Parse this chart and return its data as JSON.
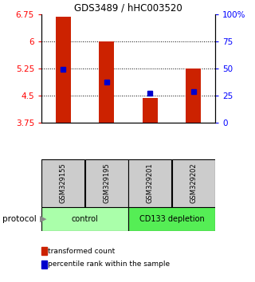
{
  "title": "GDS3489 / hHC003520",
  "samples": [
    "GSM329155",
    "GSM329195",
    "GSM329201",
    "GSM329202"
  ],
  "red_bar_bottom": 3.75,
  "red_bar_tops": [
    6.68,
    6.01,
    4.44,
    5.25
  ],
  "blue_marker_values": [
    5.22,
    4.87,
    4.57,
    4.6
  ],
  "ylim_left": [
    3.75,
    6.75
  ],
  "ylim_right": [
    0,
    100
  ],
  "yticks_left": [
    3.75,
    4.5,
    5.25,
    6.0,
    6.75
  ],
  "ytick_labels_left": [
    "3.75",
    "4.5",
    "5.25",
    "6",
    "6.75"
  ],
  "yticks_right": [
    0,
    25,
    50,
    75,
    100
  ],
  "ytick_labels_right": [
    "0",
    "25",
    "50",
    "75",
    "100%"
  ],
  "hlines": [
    4.5,
    5.25,
    6.0
  ],
  "bar_color": "#cc2200",
  "marker_color": "#0000cc",
  "protocol_groups": [
    {
      "label": "control",
      "samples": [
        0,
        1
      ],
      "color": "#aaffaa"
    },
    {
      "label": "CD133 depletion",
      "samples": [
        2,
        3
      ],
      "color": "#55ee55"
    }
  ],
  "protocol_label": "protocol",
  "legend_items": [
    {
      "label": "transformed count",
      "color": "#cc2200"
    },
    {
      "label": "percentile rank within the sample",
      "color": "#0000cc"
    }
  ],
  "background_color": "#ffffff",
  "plot_bg": "#ffffff",
  "bar_width": 0.35,
  "sample_box_color": "#cccccc"
}
